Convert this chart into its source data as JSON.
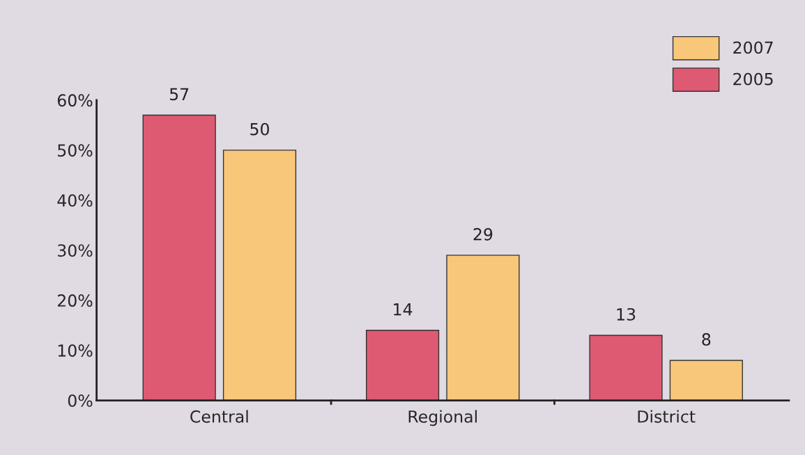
{
  "chart_data": {
    "type": "bar",
    "categories": [
      "Central",
      "Regional",
      "District"
    ],
    "series": [
      {
        "name": "2005",
        "color": "#de5a72",
        "values": [
          57,
          14,
          13
        ]
      },
      {
        "name": "2007",
        "color": "#f9c77a",
        "values": [
          50,
          29,
          8
        ]
      }
    ],
    "ylim": [
      0,
      60
    ],
    "yticks": [
      {
        "value": 0,
        "label": "0%"
      },
      {
        "value": 10,
        "label": "10%"
      },
      {
        "value": 20,
        "label": "20%"
      },
      {
        "value": 30,
        "label": "30%"
      },
      {
        "value": 40,
        "label": "40%"
      },
      {
        "value": 50,
        "label": "50%"
      },
      {
        "value": 60,
        "label": "60%"
      }
    ],
    "data_labels": true,
    "legend": "top right",
    "grid": false
  }
}
